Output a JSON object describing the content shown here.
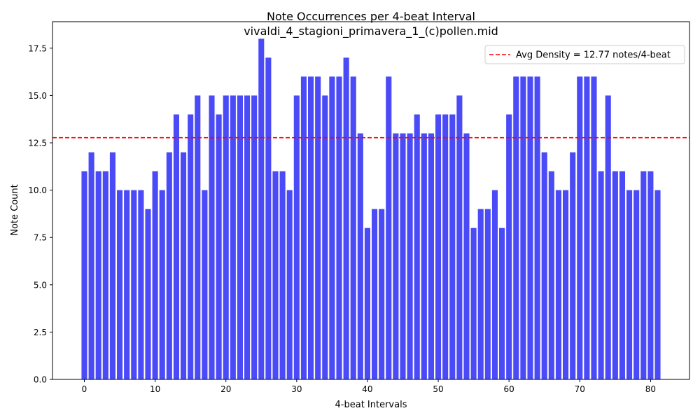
{
  "chart_data": {
    "type": "bar",
    "title": "Note Occurrences per 4-beat Interval",
    "subtitle": "vivaldi_4_stagioni_primavera_1_(c)pollen.mid",
    "xlabel": "4-beat Intervals",
    "ylabel": "Note Count",
    "x": [
      0,
      1,
      2,
      3,
      4,
      5,
      6,
      7,
      8,
      9,
      10,
      11,
      12,
      13,
      14,
      15,
      16,
      17,
      18,
      19,
      20,
      21,
      22,
      23,
      24,
      25,
      26,
      27,
      28,
      29,
      30,
      31,
      32,
      33,
      34,
      35,
      36,
      37,
      38,
      39,
      40,
      41,
      42,
      43,
      44,
      45,
      46,
      47,
      48,
      49,
      50,
      51,
      52,
      53,
      54,
      55,
      56,
      57,
      58,
      59,
      60,
      61,
      62,
      63,
      64,
      65,
      66,
      67,
      68,
      69,
      70,
      71,
      72,
      73,
      74,
      75,
      76,
      77,
      78,
      79,
      80,
      81
    ],
    "values": [
      11,
      12,
      11,
      11,
      12,
      10,
      10,
      10,
      10,
      9,
      11,
      10,
      12,
      14,
      12,
      14,
      15,
      10,
      15,
      14,
      15,
      15,
      15,
      15,
      15,
      18,
      17,
      11,
      11,
      10,
      15,
      16,
      16,
      16,
      15,
      16,
      16,
      17,
      16,
      13,
      8,
      9,
      9,
      16,
      13,
      13,
      13,
      14,
      13,
      13,
      14,
      14,
      14,
      15,
      13,
      8,
      9,
      9,
      10,
      8,
      14,
      16,
      16,
      16,
      16,
      12,
      11,
      10,
      10,
      12,
      16,
      16,
      16,
      11,
      15,
      11,
      11,
      10,
      10,
      11,
      11,
      10
    ],
    "bar_color": "#4a4af7",
    "xlim": [
      -4.5,
      85.5
    ],
    "ylim": [
      0,
      18.9
    ],
    "xticks": [
      "0",
      "10",
      "20",
      "30",
      "40",
      "50",
      "60",
      "70",
      "80"
    ],
    "yticks": [
      "0.0",
      "2.5",
      "5.0",
      "7.5",
      "10.0",
      "12.5",
      "15.0",
      "17.5"
    ],
    "reference_line": {
      "value": 12.77,
      "color": "#ff0000",
      "style": "dashed",
      "label": "Avg Density = 12.77 notes/4-beat"
    },
    "legend_position": "top-right",
    "grid": false
  }
}
